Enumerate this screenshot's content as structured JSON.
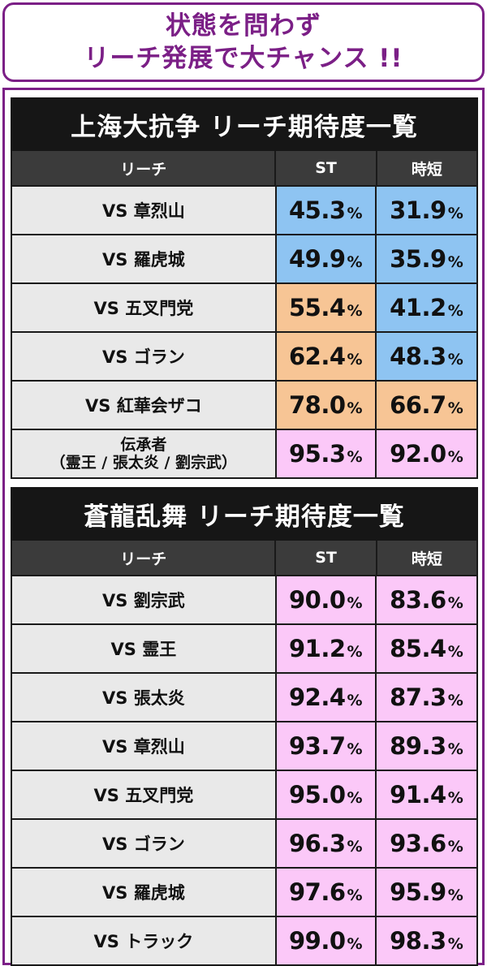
{
  "headline": {
    "line1": "状態を問わず",
    "line2": "リーチ発展で大チャンス !!"
  },
  "percent_sign": "%",
  "tables": [
    {
      "title": "上海大抗争 リーチ期待度一覧",
      "columns": [
        "リーチ",
        "ST",
        "時短"
      ],
      "rows": [
        {
          "name": "VS 章烈山",
          "st": "45.3",
          "jitan": "31.9",
          "st_color": "blue",
          "jitan_color": "blue"
        },
        {
          "name": "VS 羅虎城",
          "st": "49.9",
          "jitan": "35.9",
          "st_color": "blue",
          "jitan_color": "blue"
        },
        {
          "name": "VS 五叉門党",
          "st": "55.4",
          "jitan": "41.2",
          "st_color": "orange",
          "jitan_color": "blue"
        },
        {
          "name": "VS ゴラン",
          "st": "62.4",
          "jitan": "48.3",
          "st_color": "orange",
          "jitan_color": "blue"
        },
        {
          "name": "VS 紅華会ザコ",
          "st": "78.0",
          "jitan": "66.7",
          "st_color": "orange",
          "jitan_color": "orange"
        },
        {
          "name_line1": "伝承者",
          "name_line2": "（霊王 / 張太炎 / 劉宗武）",
          "st": "95.3",
          "jitan": "92.0",
          "st_color": "pink",
          "jitan_color": "pink"
        }
      ]
    },
    {
      "title": "蒼龍乱舞 リーチ期待度一覧",
      "columns": [
        "リーチ",
        "ST",
        "時短"
      ],
      "rows": [
        {
          "name": "VS 劉宗武",
          "st": "90.0",
          "jitan": "83.6",
          "st_color": "pink",
          "jitan_color": "pink"
        },
        {
          "name": "VS 霊王",
          "st": "91.2",
          "jitan": "85.4",
          "st_color": "pink",
          "jitan_color": "pink"
        },
        {
          "name": "VS 張太炎",
          "st": "92.4",
          "jitan": "87.3",
          "st_color": "pink",
          "jitan_color": "pink"
        },
        {
          "name": "VS 章烈山",
          "st": "93.7",
          "jitan": "89.3",
          "st_color": "pink",
          "jitan_color": "pink"
        },
        {
          "name": "VS 五叉門党",
          "st": "95.0",
          "jitan": "91.4",
          "st_color": "pink",
          "jitan_color": "pink"
        },
        {
          "name": "VS ゴラン",
          "st": "96.3",
          "jitan": "93.6",
          "st_color": "pink",
          "jitan_color": "pink"
        },
        {
          "name": "VS 羅虎城",
          "st": "97.6",
          "jitan": "95.9",
          "st_color": "pink",
          "jitan_color": "pink"
        },
        {
          "name": "VS トラック",
          "st": "99.0",
          "jitan": "98.3",
          "st_color": "pink",
          "jitan_color": "pink"
        }
      ]
    }
  ],
  "colors": {
    "accent_purple": "#7b1f86",
    "blue": "#8ec4f2",
    "orange": "#f7c595",
    "pink": "#fbc8f8"
  }
}
